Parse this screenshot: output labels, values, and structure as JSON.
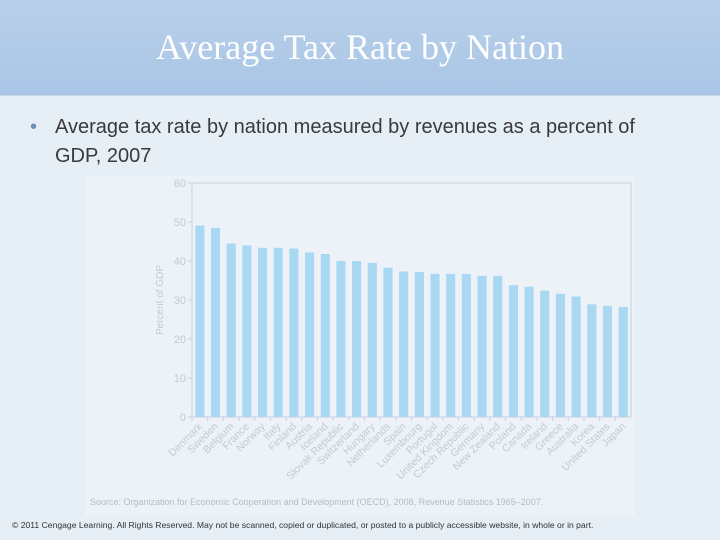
{
  "slide": {
    "title": "Average Tax Rate by Nation",
    "bullet": "Average tax rate by nation measured by revenues as a percent of GDP, 2007",
    "source": "Source: Organization for Economic Cooperation and Development (OECD), 2008, Revenue Statistics 1965–2007.",
    "footer": "© 2011 Cengage Learning. All Rights Reserved. May not be scanned, copied or duplicated, or posted to a publicly accessible website, in whole or in part."
  },
  "chart_data": {
    "type": "bar",
    "ylabel": "Percent of GDP",
    "ylim": [
      0,
      60
    ],
    "yticks": [
      "0",
      "10",
      "20",
      "30",
      "40",
      "50",
      "60"
    ],
    "bar_color": "#a9d8f3",
    "categories": [
      "Denmark",
      "Sweden",
      "Belgium",
      "France",
      "Norway",
      "Italy",
      "Finland",
      "Austria",
      "Iceland",
      "Slovak Republic",
      "Switzerland",
      "Hungary",
      "Netherlands",
      "Spain",
      "Luxembourg",
      "Portugal",
      "United Kingdom",
      "Czech Republic",
      "Germany",
      "New Zealand",
      "Poland",
      "Canada",
      "Ireland",
      "Greece",
      "Australia",
      "Korea",
      "United States",
      "Japan"
    ],
    "values": [
      49.1,
      48.5,
      44.5,
      44.0,
      43.4,
      43.4,
      43.2,
      42.2,
      41.8,
      40.0,
      40.0,
      39.5,
      38.3,
      37.3,
      37.2,
      36.7,
      36.7,
      36.7,
      36.2,
      36.2,
      33.8,
      33.4,
      32.4,
      31.6,
      30.9,
      28.9,
      28.5,
      28.2
    ]
  }
}
